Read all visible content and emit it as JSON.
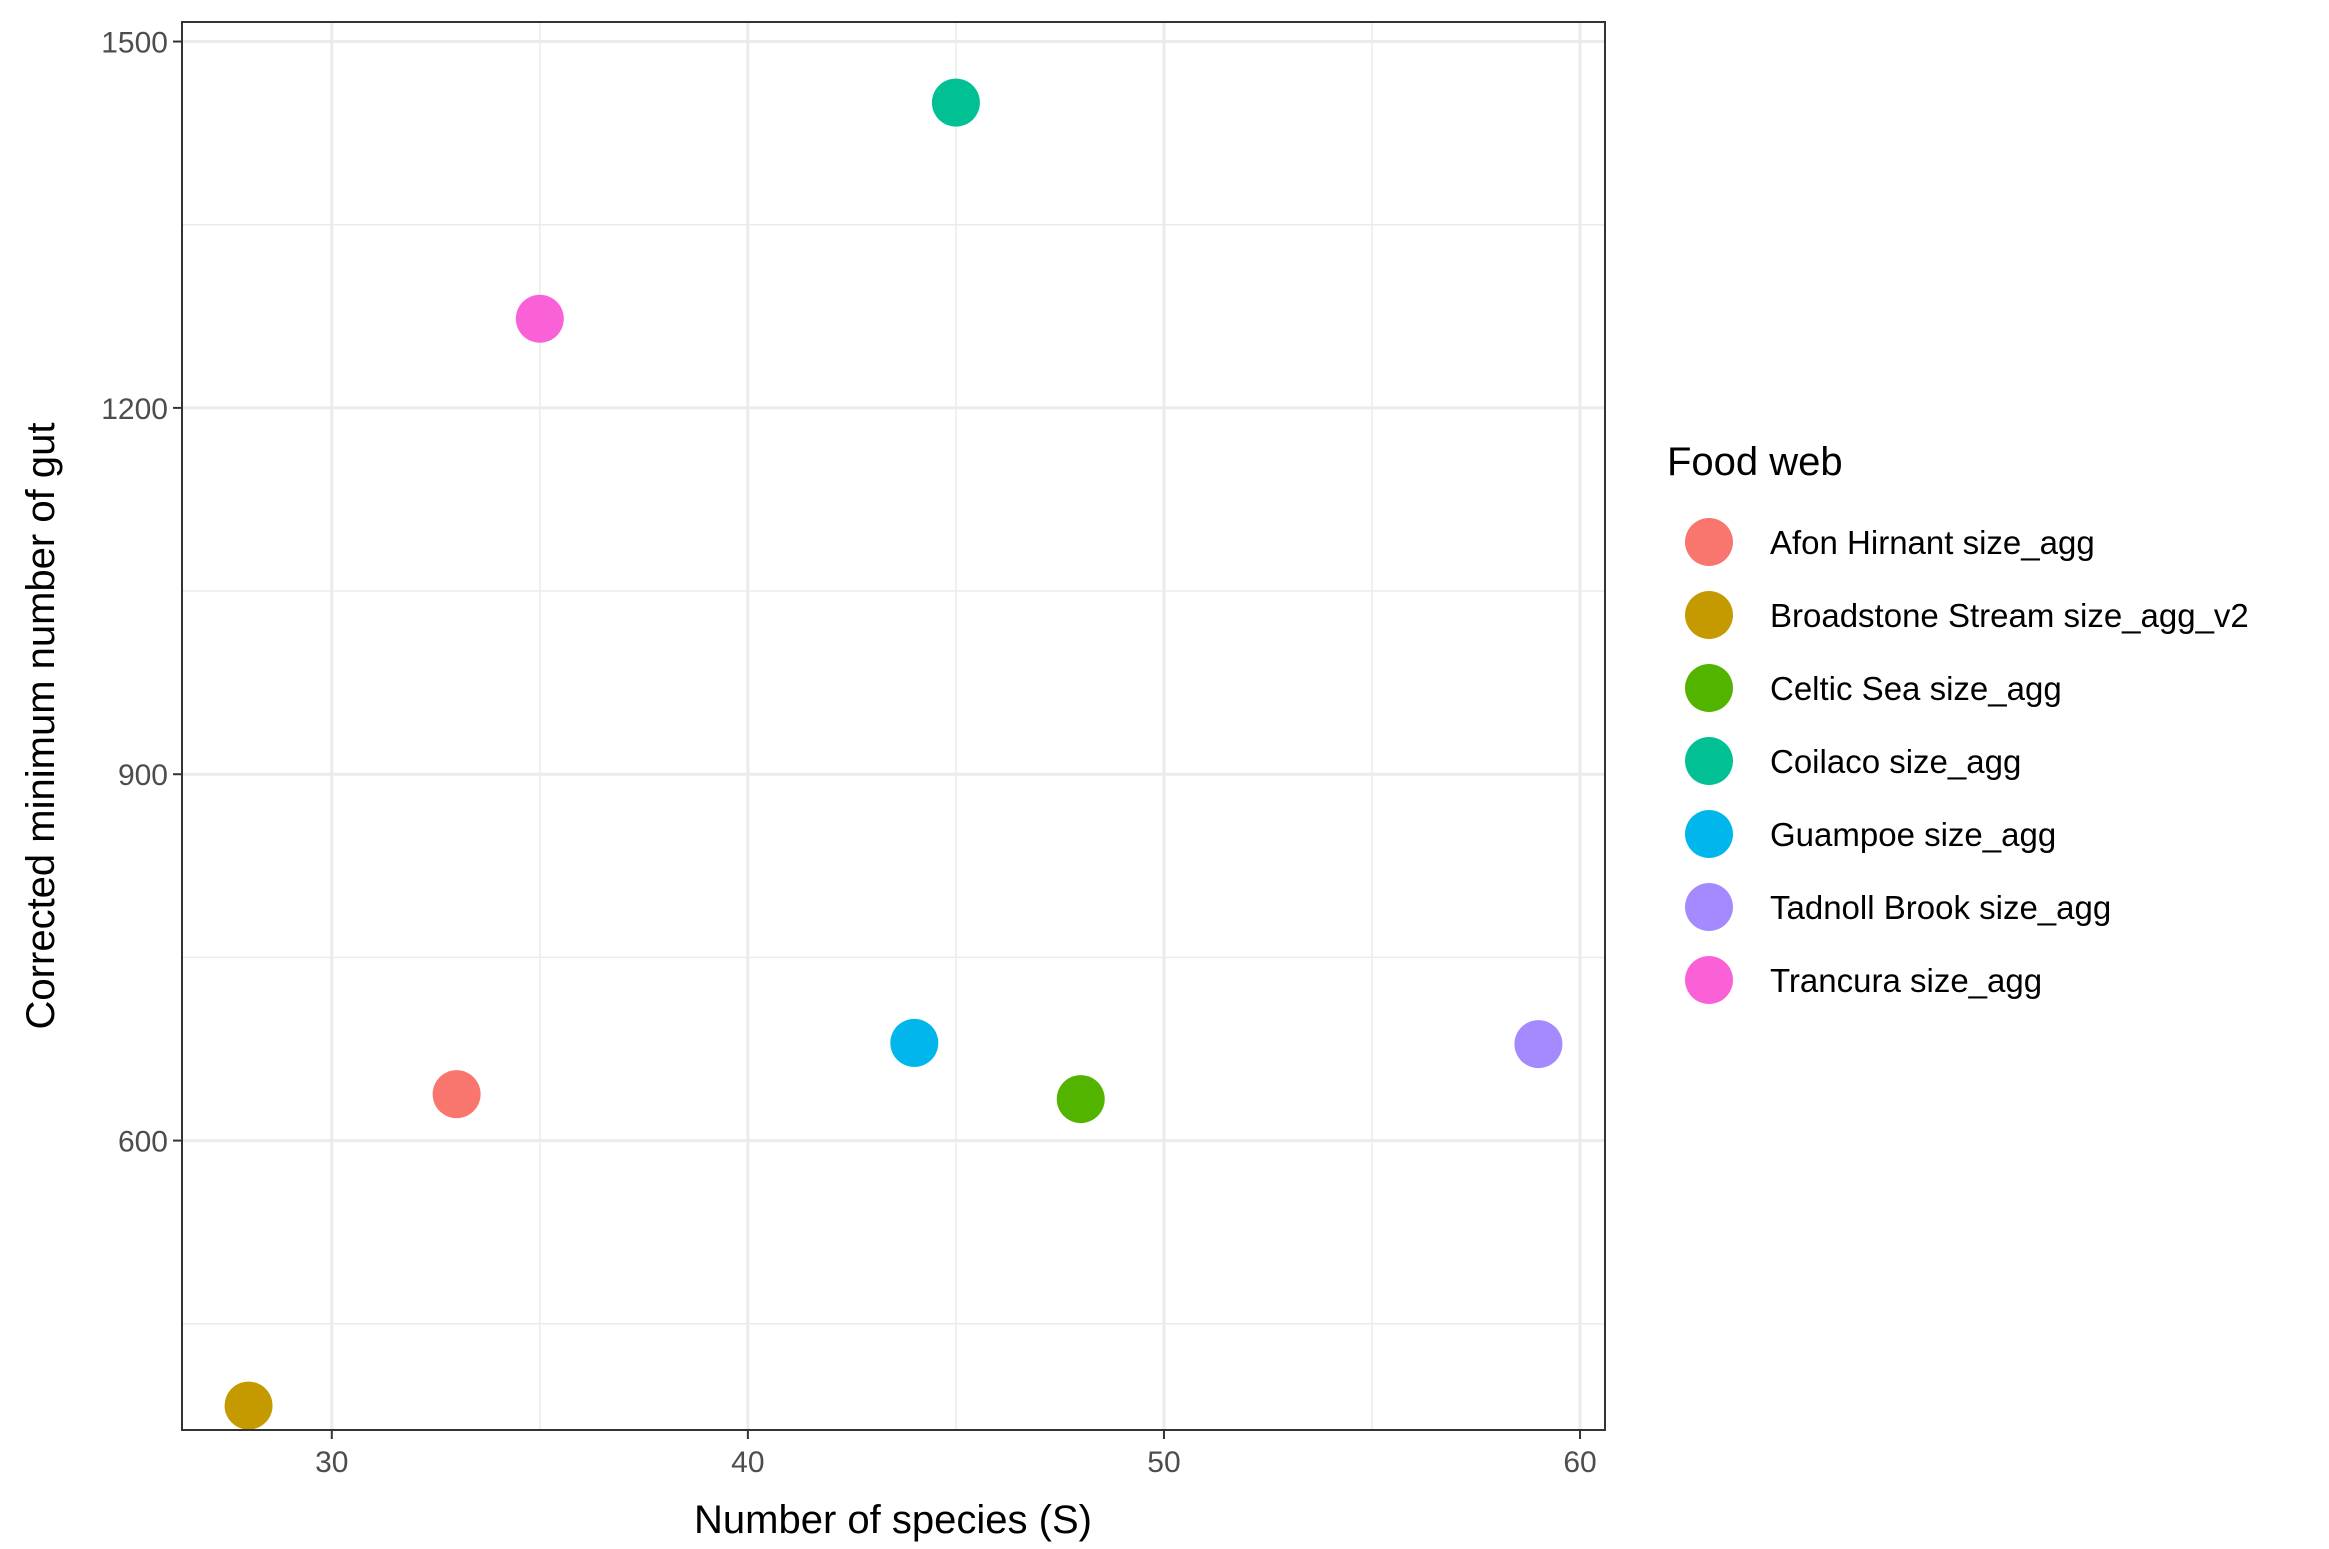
{
  "chart_data": {
    "type": "scatter",
    "xlabel": "Number of species (S)",
    "ylabel": "Corrected minimum number of gut",
    "xlim": [
      26.4,
      60.6
    ],
    "ylim": [
      363,
      1516
    ],
    "xticks": [
      30,
      40,
      50,
      60
    ],
    "xtick_labels": [
      "30",
      "40",
      "50",
      "60"
    ],
    "xminor": [
      35,
      45,
      55
    ],
    "yticks": [
      600,
      900,
      1200,
      1500
    ],
    "ytick_labels": [
      "600",
      "900",
      "1200",
      "1500"
    ],
    "yminor": [
      450,
      750,
      1050,
      1350
    ],
    "grid": true,
    "legend": {
      "title": "Food web",
      "position": "right"
    },
    "series": [
      {
        "name": "Afon Hirnant size_agg",
        "color": "#F8766D",
        "x": [
          33
        ],
        "y": [
          638
        ]
      },
      {
        "name": "Broadstone Stream size_agg_v2",
        "color": "#C49A00",
        "x": [
          28
        ],
        "y": [
          383
        ]
      },
      {
        "name": "Celtic Sea size_agg",
        "color": "#53B400",
        "x": [
          48
        ],
        "y": [
          634
        ]
      },
      {
        "name": "Coilaco size_agg",
        "color": "#00C094",
        "x": [
          45
        ],
        "y": [
          1450
        ]
      },
      {
        "name": "Guampoe size_agg",
        "color": "#00B6EB",
        "x": [
          44
        ],
        "y": [
          680
        ]
      },
      {
        "name": "Tadnoll Brook size_agg",
        "color": "#A58AFF",
        "x": [
          59
        ],
        "y": [
          679
        ]
      },
      {
        "name": "Trancura size_agg",
        "color": "#FB61D7",
        "x": [
          35
        ],
        "y": [
          1273
        ]
      }
    ]
  }
}
